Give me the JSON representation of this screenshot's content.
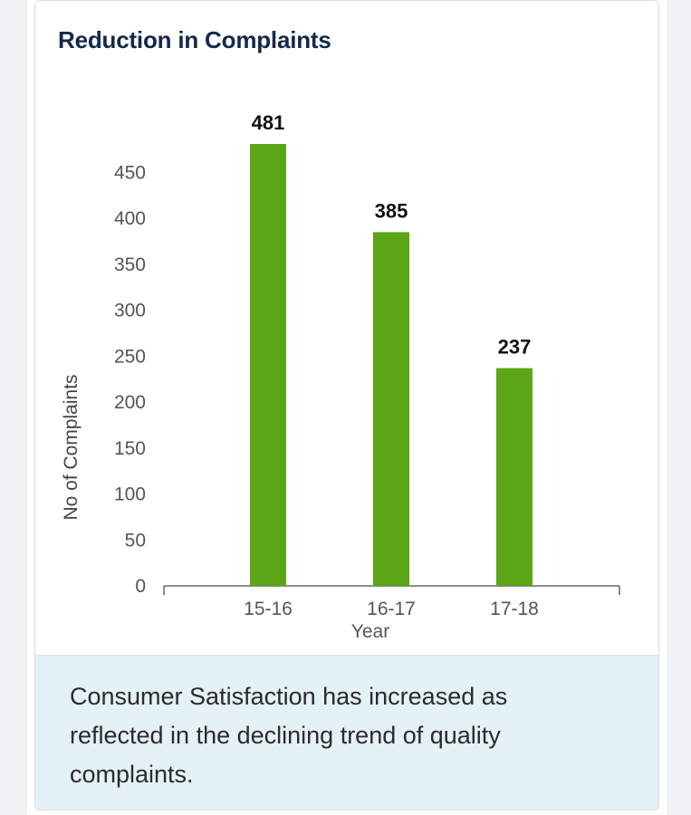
{
  "card": {
    "title": "Reduction in Complaints",
    "footer_text": "Consumer Satisfaction has increased as reflected in the declining trend of quality complaints."
  },
  "colors": {
    "bar": "#5ba516",
    "title": "#13294b",
    "footer_bg": "#e4f1f7",
    "axis": "#555555"
  },
  "chart_data": {
    "type": "bar",
    "title": "Reduction in Complaints",
    "categories": [
      "15-16",
      "16-17",
      "17-18"
    ],
    "values": [
      481,
      385,
      237
    ],
    "xlabel": "Year",
    "ylabel": "No of Complaints",
    "ylim": [
      0,
      481
    ],
    "yticks": [
      0,
      50,
      100,
      150,
      200,
      250,
      300,
      350,
      400,
      450
    ],
    "grid": false,
    "data_labels": true
  }
}
